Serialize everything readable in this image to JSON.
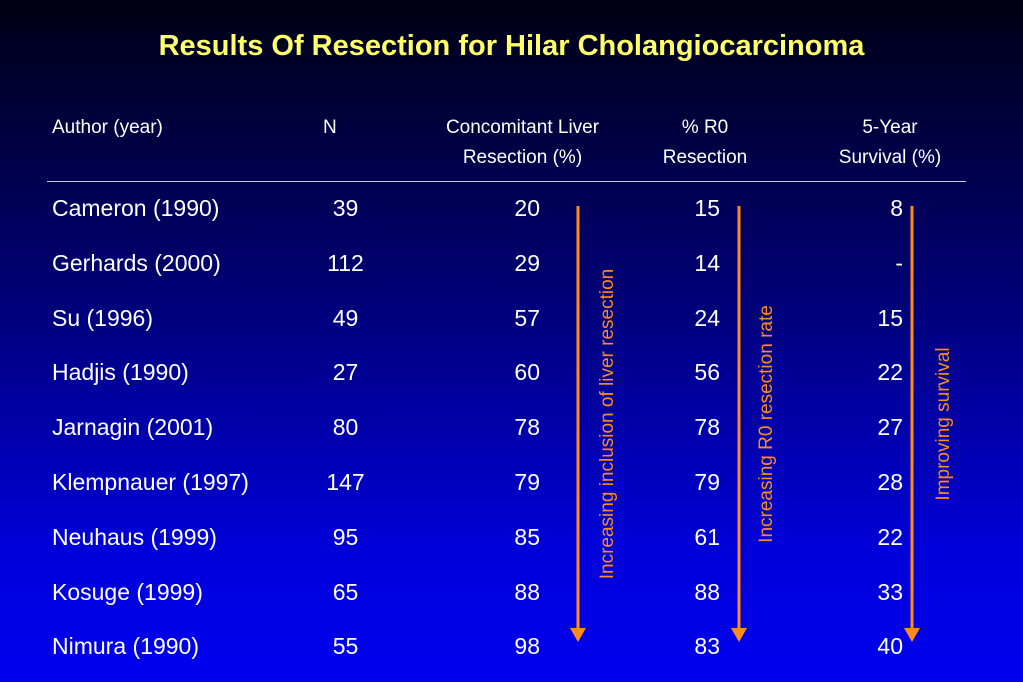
{
  "title": "Results Of Resection for Hilar Cholangiocarcinoma",
  "headers": {
    "author": "Author (year)",
    "n": "N",
    "liver_line1": "Concomitant Liver",
    "liver_line2": "Resection (%)",
    "r0_line1": "% R0",
    "r0_line2": "Resection",
    "surv_line1": "5-Year",
    "surv_line2": "Survival (%)"
  },
  "rows": [
    {
      "author": "Cameron (1990)",
      "n": "39",
      "liver": "20",
      "r0": "15",
      "surv": "8"
    },
    {
      "author": "Gerhards (2000)",
      "n": "112",
      "liver": "29",
      "r0": "14",
      "surv": "-"
    },
    {
      "author": "Su (1996)",
      "n": "49",
      "liver": "57",
      "r0": "24",
      "surv": "15"
    },
    {
      "author": "Hadjis (1990)",
      "n": "27",
      "liver": "60",
      "r0": "56",
      "surv": "22"
    },
    {
      "author": "Jarnagin (2001)",
      "n": "80",
      "liver": "78",
      "r0": "78",
      "surv": "27"
    },
    {
      "author": "Klempnauer (1997)",
      "n": "147",
      "liver": "79",
      "r0": "79",
      "surv": "28"
    },
    {
      "author": "Neuhaus (1999)",
      "n": "95",
      "liver": "85",
      "r0": "61",
      "surv": "22"
    },
    {
      "author": "Kosuge (1999)",
      "n": "65",
      "liver": "88",
      "r0": "88",
      "surv": "33"
    },
    {
      "author": "Nimura (1990)",
      "n": "55",
      "liver": "98",
      "r0": "83",
      "surv": "40"
    }
  ],
  "annotations": {
    "liver": "Increasing inclusion of liver resection",
    "r0": "Increasing R0 resection rate",
    "survival": "Improving survival"
  },
  "colors": {
    "title": "#ffff66",
    "arrow": "#ff8c1a",
    "text": "#ffffff",
    "background_top": "#000014",
    "background_bottom": "#0000f0"
  }
}
